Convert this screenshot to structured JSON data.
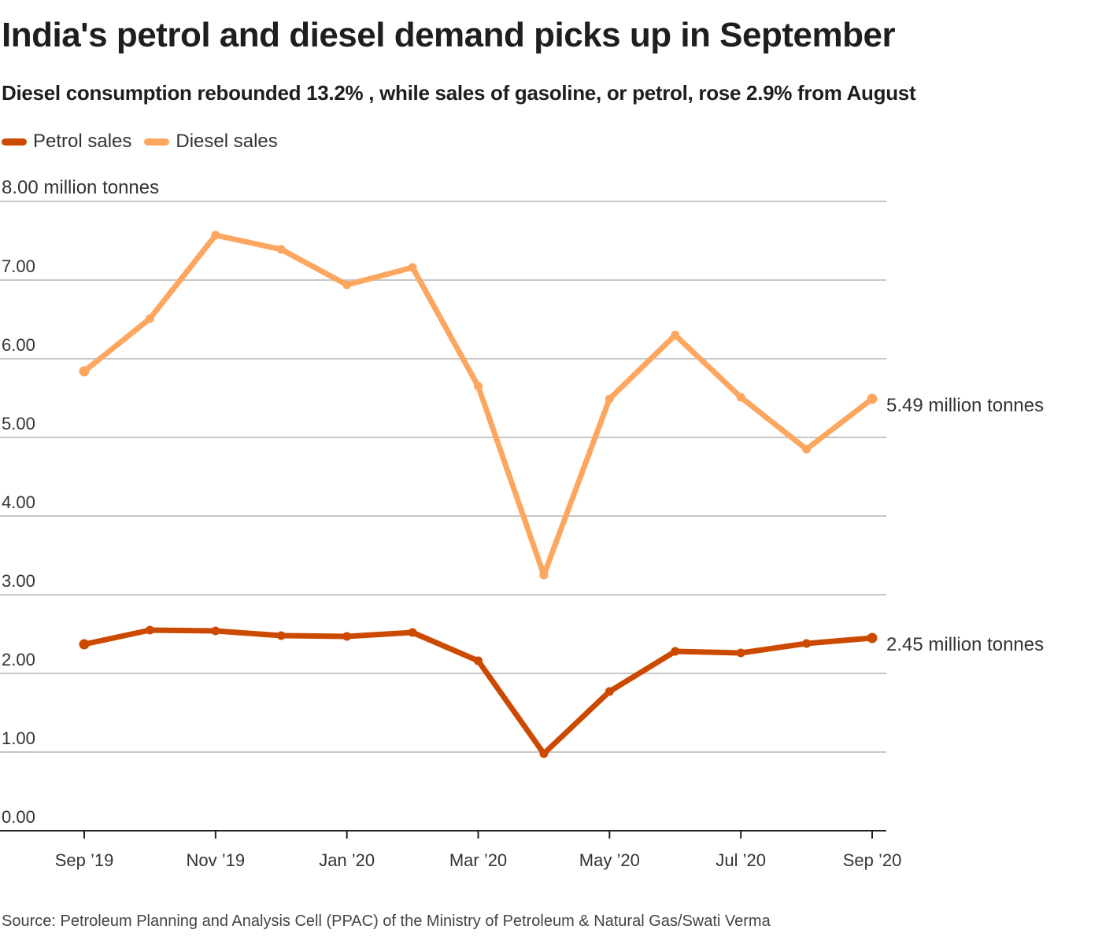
{
  "title": "India's petrol and diesel demand picks up in September",
  "subtitle": "Diesel consumption rebounded 13.2% , while sales of gasoline, or petrol, rose 2.9% from August",
  "source": "Source: Petroleum Planning and Analysis Cell (PPAC) of the Ministry of Petroleum & Natural Gas/Swati Verma",
  "chart_data": {
    "type": "line",
    "title": "India's petrol and diesel demand picks up in September",
    "subtitle": "Diesel consumption rebounded 13.2% , while sales of gasoline, or petrol, rose 2.9% from August",
    "xlabel": "",
    "ylabel": "million tonnes",
    "ylim": [
      0,
      8
    ],
    "y_ticks": [
      0,
      1,
      2,
      3,
      4,
      5,
      6,
      7,
      8
    ],
    "y_tick_labels": [
      "0.00",
      "1.00",
      "2.00",
      "3.00",
      "4.00",
      "5.00",
      "6.00",
      "7.00",
      "8.00 million tonnes"
    ],
    "grid": true,
    "legend_position": "top-left",
    "x": [
      "Sep '19",
      "Oct '19",
      "Nov '19",
      "Dec '19",
      "Jan '20",
      "Feb '20",
      "Mar '20",
      "Apr '20",
      "May '20",
      "Jun '20",
      "Jul '20",
      "Aug '20",
      "Sep '20"
    ],
    "x_tick_labels": [
      "Sep ’19",
      "Nov ’19",
      "Jan ’20",
      "Mar ’20",
      "May ’20",
      "Jul ’20",
      "Sep ’20"
    ],
    "x_tick_indices": [
      0,
      2,
      4,
      6,
      8,
      10,
      12
    ],
    "series": [
      {
        "name": "Petrol sales",
        "color": "#cc4a00",
        "values": [
          2.37,
          2.55,
          2.54,
          2.48,
          2.47,
          2.52,
          2.16,
          0.98,
          1.77,
          2.28,
          2.26,
          2.38,
          2.45
        ],
        "end_label": "2.45 million tonnes"
      },
      {
        "name": "Diesel sales",
        "color": "#fca65f",
        "values": [
          5.84,
          6.51,
          7.57,
          7.39,
          6.94,
          7.16,
          5.65,
          3.25,
          5.49,
          6.3,
          5.51,
          4.85,
          5.49
        ],
        "end_label": "5.49 million tonnes"
      }
    ]
  }
}
